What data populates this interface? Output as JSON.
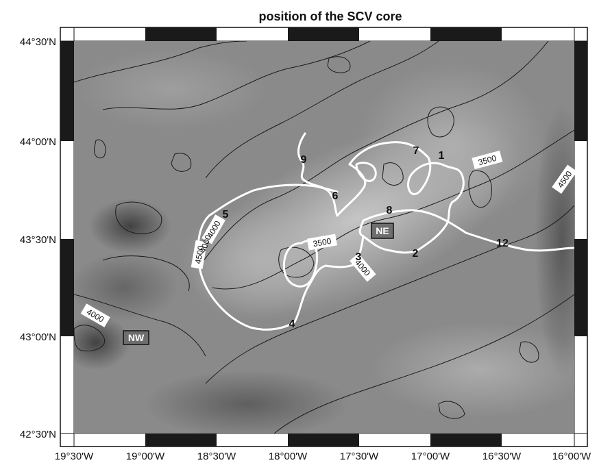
{
  "title": "position of the SCV core",
  "axes": {
    "x_ticks": [
      "19°30'W",
      "19°00'W",
      "18°30'W",
      "18°00'W",
      "17°30'W",
      "17°00'W",
      "16°30'W",
      "16°00'W"
    ],
    "y_ticks": [
      "44°30'N",
      "44°00'N",
      "43°30'N",
      "43°00'N",
      "42°30'N"
    ]
  },
  "contour_labels": [
    "3500",
    "4500",
    "3500",
    "4000",
    "4000",
    "4500",
    "4000",
    "4000"
  ],
  "track_labels": [
    "1",
    "2",
    "3",
    "4",
    "5",
    "6",
    "7",
    "8",
    "9",
    "12"
  ],
  "stations": [
    "NE",
    "NW"
  ],
  "colors": {
    "track": "#ffffff",
    "contour": "#1a1a1a",
    "station_box": "#6e6e6e",
    "frame_dark": "#1a1a1a"
  }
}
